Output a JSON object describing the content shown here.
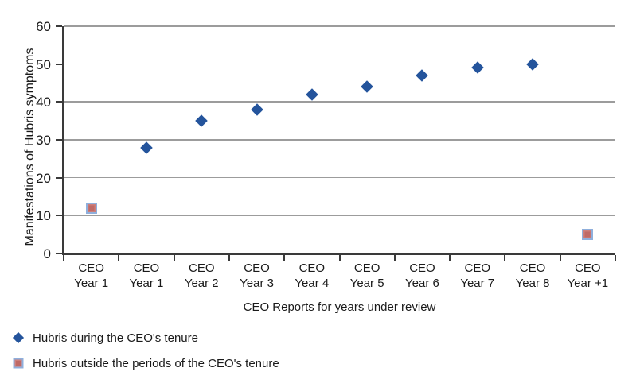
{
  "chart_data": {
    "type": "scatter",
    "title": "",
    "xlabel": "CEO Reports for years under review",
    "ylabel": "Manifestations of Hubris symptoms",
    "ylim": [
      0,
      60
    ],
    "yticks": [
      0,
      10,
      20,
      30,
      40,
      50,
      60
    ],
    "grid": "horizontal-gridlines-on",
    "legend_position": "bottom-left",
    "categories": [
      {
        "top": "CEO",
        "bottom": "Year 1"
      },
      {
        "top": "CEO",
        "bottom": "Year 1"
      },
      {
        "top": "CEO",
        "bottom": "Year 2"
      },
      {
        "top": "CEO",
        "bottom": "Year 3"
      },
      {
        "top": "CEO",
        "bottom": "Year 4"
      },
      {
        "top": "CEO",
        "bottom": "Year 5"
      },
      {
        "top": "CEO",
        "bottom": "Year 6"
      },
      {
        "top": "CEO",
        "bottom": "Year 7"
      },
      {
        "top": "CEO",
        "bottom": "Year 8"
      },
      {
        "top": "CEO",
        "bottom": "Year +1"
      }
    ],
    "series": [
      {
        "name": "Hubris during the CEO's tenure",
        "marker": "diamond",
        "points": [
          {
            "category_index": 1,
            "value": 28
          },
          {
            "category_index": 2,
            "value": 35
          },
          {
            "category_index": 3,
            "value": 38
          },
          {
            "category_index": 4,
            "value": 42
          },
          {
            "category_index": 5,
            "value": 44
          },
          {
            "category_index": 6,
            "value": 47
          },
          {
            "category_index": 7,
            "value": 49
          },
          {
            "category_index": 8,
            "value": 50
          }
        ]
      },
      {
        "name": "Hubris outside the periods of the CEO's tenure",
        "marker": "square",
        "points": [
          {
            "category_index": 0,
            "value": 12
          },
          {
            "category_index": 9,
            "value": 5
          }
        ]
      }
    ],
    "colors": {
      "diamond": "#24549C",
      "square_fill": "#CE7F7B",
      "square_inner": "#C06A66",
      "square_border": "#8FAFDC",
      "gridline": "#9C9C9C",
      "axis": "#3A3A3A",
      "text": "#1A1A1A"
    }
  }
}
